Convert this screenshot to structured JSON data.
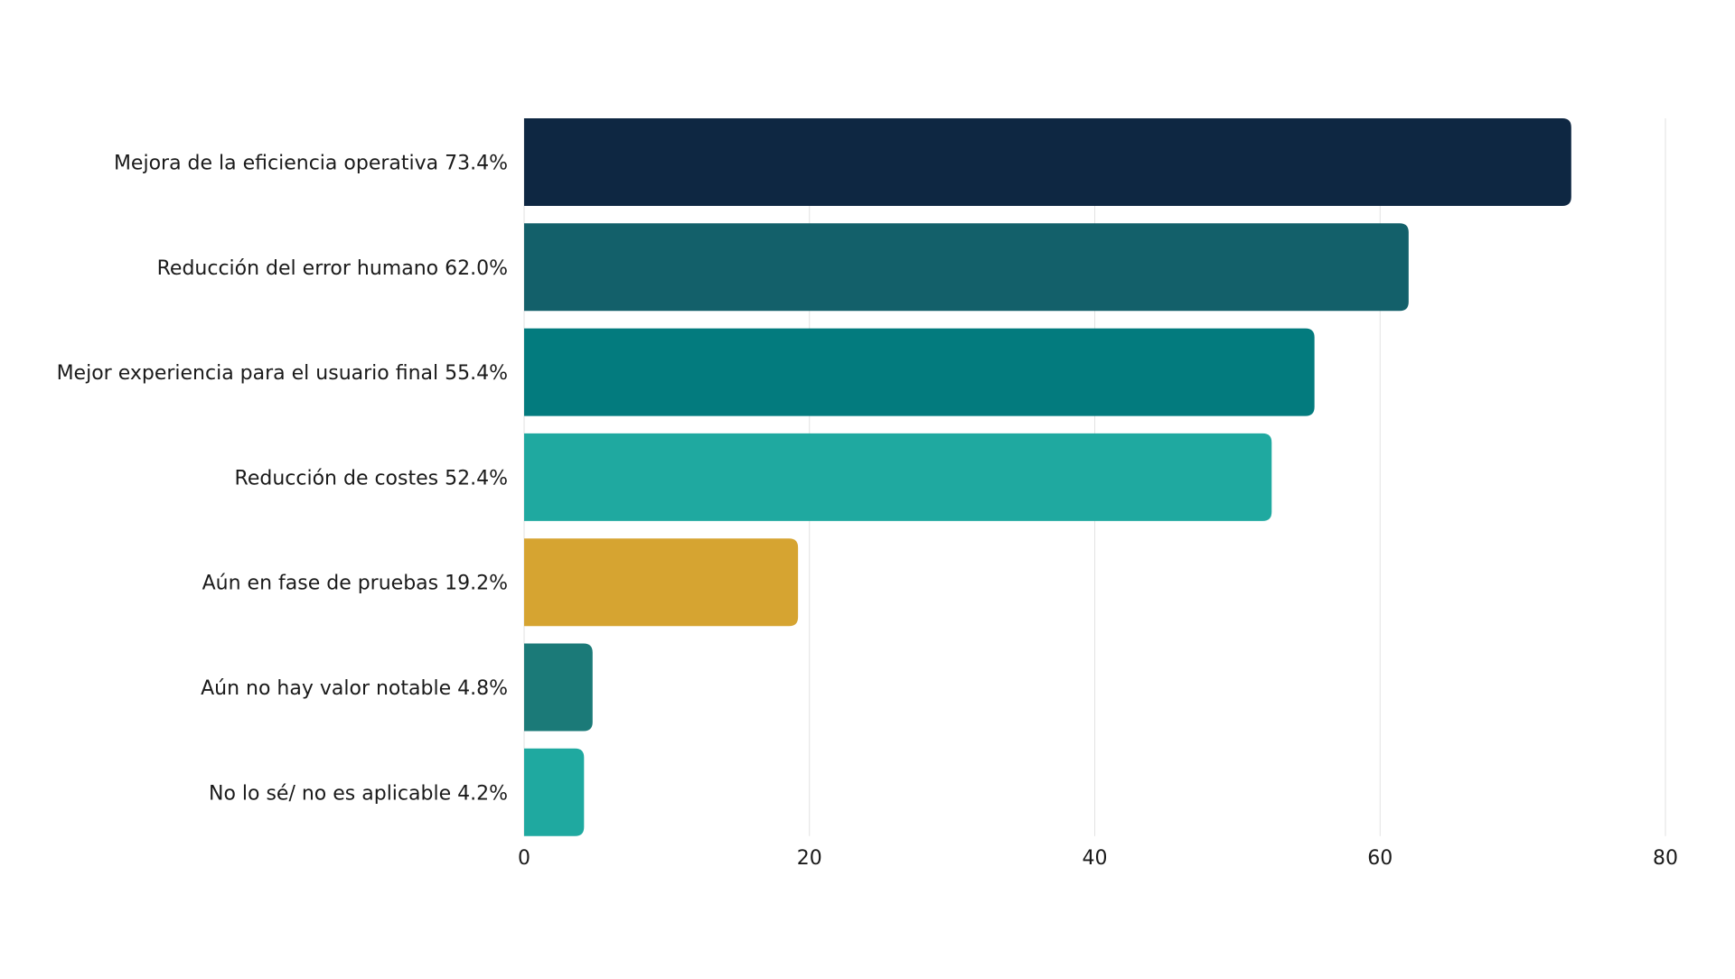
{
  "chart_data": {
    "type": "bar",
    "orientation": "horizontal",
    "title": "",
    "xlabel": "",
    "ylabel": "",
    "xlim": [
      0,
      80
    ],
    "x_ticks": [
      "0",
      "20",
      "40",
      "60",
      "80"
    ],
    "grid": "vertical",
    "legend": "none",
    "categories": [
      "Mejora de la eficiencia operativa 73.4%",
      "Reducción del error humano 62.0%",
      "Mejor experiencia para el usuario final 55.4%",
      "Reducción de costes 52.4%",
      "Aún en fase de pruebas 19.2%",
      "Aún no hay valor notable 4.8%",
      "No lo sé/ no es aplicable 4.2%"
    ],
    "values": [
      73.4,
      62.0,
      55.4,
      52.4,
      19.2,
      4.8,
      4.2
    ],
    "colors": [
      "#0e2742",
      "#13606a",
      "#037b7e",
      "#1fa9a0",
      "#d6a431",
      "#1b7a78",
      "#1fa9a0"
    ]
  }
}
